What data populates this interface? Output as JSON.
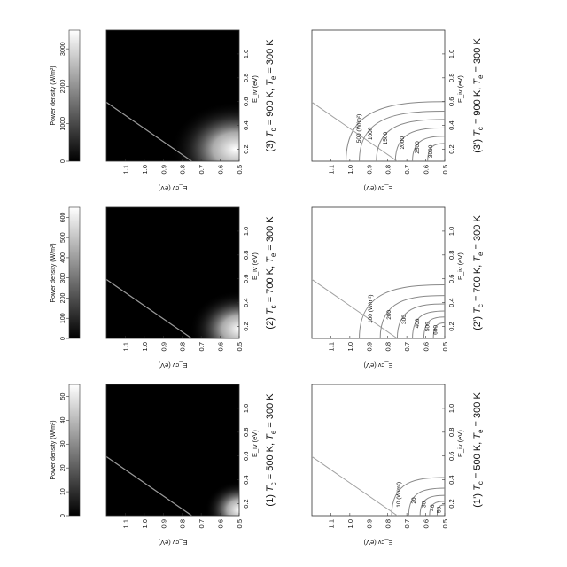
{
  "chart_data": [
    {
      "type": "heatmap",
      "caption_prefix": "(1)",
      "caption_tc": "500 K",
      "caption_te": "300 K",
      "xlabel": "E_iv (eV)",
      "ylabel": "E_cv (eV)",
      "xlim": [
        0.1,
        1.2
      ],
      "ylim": [
        0.5,
        1.2
      ],
      "xticks": [
        "0.2",
        "0.4",
        "0.6",
        "0.8",
        "1.0"
      ],
      "yticks": [
        "0.5",
        "0.6",
        "0.7",
        "0.8",
        "0.9",
        "1.0",
        "1.1"
      ],
      "colorbar_label": "Power density (W/m²)",
      "colorbar_ticks": [
        "0",
        "10",
        "20",
        "30",
        "40",
        "50"
      ],
      "colorbar_max": 55,
      "hotspot": {
        "x": 0.15,
        "y": 0.5
      },
      "spread": {
        "x": 0.12,
        "y": 0.09
      },
      "colormap": [
        "#000000",
        "#ffffff"
      ],
      "diagonal_line": {
        "from": [
          0.1,
          0.75
        ],
        "to": [
          1.2,
          1.75
        ]
      }
    },
    {
      "type": "heatmap",
      "caption_prefix": "(2)",
      "caption_tc": "700 K",
      "caption_te": "300 K",
      "xlabel": "E_iv (eV)",
      "ylabel": "E_cv (eV)",
      "xlim": [
        0.1,
        1.2
      ],
      "ylim": [
        0.5,
        1.2
      ],
      "xticks": [
        "0.2",
        "0.4",
        "0.6",
        "0.8",
        "1.0"
      ],
      "yticks": [
        "0.5",
        "0.6",
        "0.7",
        "0.8",
        "0.9",
        "1.0",
        "1.1"
      ],
      "colorbar_label": "Power density (W/m²)",
      "colorbar_ticks": [
        "0",
        "100",
        "200",
        "300",
        "400",
        "500",
        "600"
      ],
      "colorbar_max": 650,
      "hotspot": {
        "x": 0.18,
        "y": 0.5
      },
      "spread": {
        "x": 0.16,
        "y": 0.13
      },
      "colormap": [
        "#000000",
        "#ffffff"
      ],
      "diagonal_line": {
        "from": [
          0.1,
          0.75
        ],
        "to": [
          1.2,
          1.75
        ]
      }
    },
    {
      "type": "heatmap",
      "caption_prefix": "(3)",
      "caption_tc": "900 K",
      "caption_te": "300 K",
      "xlabel": "E_iv (eV)",
      "ylabel": "E_cv (eV)",
      "xlim": [
        0.1,
        1.2
      ],
      "ylim": [
        0.5,
        1.2
      ],
      "xticks": [
        "0.2",
        "0.4",
        "0.6",
        "0.8",
        "1.0"
      ],
      "yticks": [
        "0.5",
        "0.6",
        "0.7",
        "0.8",
        "0.9",
        "1.0",
        "1.1"
      ],
      "colorbar_label": "Power density (W/m²)",
      "colorbar_ticks": [
        "0",
        "1000",
        "2000",
        "3000"
      ],
      "colorbar_max": 3500,
      "hotspot": {
        "x": 0.2,
        "y": 0.52
      },
      "spread": {
        "x": 0.2,
        "y": 0.17
      },
      "colormap": [
        "#000000",
        "#ffffff"
      ],
      "diagonal_line": {
        "from": [
          0.1,
          0.75
        ],
        "to": [
          1.2,
          1.75
        ]
      }
    },
    {
      "type": "contour",
      "caption_prefix": "(1’)",
      "caption_tc": "500 K",
      "caption_te": "300 K",
      "xlabel": "E_iv (eV)",
      "ylabel": "E_cv (eV)",
      "xlim": [
        0.1,
        1.2
      ],
      "ylim": [
        0.5,
        1.2
      ],
      "xticks": [
        "0.2",
        "0.4",
        "0.6",
        "0.8",
        "1.0"
      ],
      "yticks": [
        "0.5",
        "0.6",
        "0.7",
        "0.8",
        "0.9",
        "1.0",
        "1.1"
      ],
      "contours": [
        {
          "level": "10 (W/m²)",
          "x_max": 0.42,
          "y_max": 0.78
        },
        {
          "level": "20",
          "x_max": 0.33,
          "y_max": 0.69
        },
        {
          "level": "30",
          "x_max": 0.27,
          "y_max": 0.63
        },
        {
          "level": "40",
          "x_max": 0.22,
          "y_max": 0.58
        },
        {
          "level": "50",
          "x_max": 0.19,
          "y_max": 0.54
        }
      ],
      "diagonal_line": {
        "from": [
          0.1,
          0.75
        ],
        "to": [
          1.2,
          1.75
        ]
      }
    },
    {
      "type": "contour",
      "caption_prefix": "(2’)",
      "caption_tc": "700 K",
      "caption_te": "300 K",
      "xlabel": "E_iv (eV)",
      "ylabel": "E_cv (eV)",
      "xlim": [
        0.1,
        1.2
      ],
      "ylim": [
        0.5,
        1.2
      ],
      "xticks": [
        "0.2",
        "0.4",
        "0.6",
        "0.8",
        "1.0"
      ],
      "yticks": [
        "0.5",
        "0.6",
        "0.7",
        "0.8",
        "0.9",
        "1.0",
        "1.1"
      ],
      "contours": [
        {
          "level": "100 (W/m²)",
          "x_max": 0.55,
          "y_max": 0.95
        },
        {
          "level": "200",
          "x_max": 0.46,
          "y_max": 0.84
        },
        {
          "level": "300",
          "x_max": 0.39,
          "y_max": 0.75
        },
        {
          "level": "400",
          "x_max": 0.33,
          "y_max": 0.67
        },
        {
          "level": "500",
          "x_max": 0.28,
          "y_max": 0.61
        },
        {
          "level": "600",
          "x_max": 0.23,
          "y_max": 0.56
        }
      ],
      "diagonal_line": {
        "from": [
          0.1,
          0.75
        ],
        "to": [
          1.2,
          1.75
        ]
      }
    },
    {
      "type": "contour",
      "caption_prefix": "(3’)",
      "caption_tc": "900 K",
      "caption_te": "300 K",
      "xlabel": "E_iv (eV)",
      "ylabel": "E_cv (eV)",
      "xlim": [
        0.1,
        1.2
      ],
      "ylim": [
        0.5,
        1.2
      ],
      "xticks": [
        "0.2",
        "0.4",
        "0.6",
        "0.8",
        "1.0"
      ],
      "yticks": [
        "0.5",
        "0.6",
        "0.7",
        "0.8",
        "0.9",
        "1.0",
        "1.1"
      ],
      "contours": [
        {
          "level": "500 (W/m²)",
          "x_max": 0.6,
          "y_max": 1.02
        },
        {
          "level": "1000",
          "x_max": 0.52,
          "y_max": 0.95
        },
        {
          "level": "1500",
          "x_max": 0.45,
          "y_max": 0.86
        },
        {
          "level": "2000",
          "x_max": 0.38,
          "y_max": 0.76
        },
        {
          "level": "2500",
          "x_max": 0.31,
          "y_max": 0.67
        },
        {
          "level": "3000",
          "x_max": 0.25,
          "y_max": 0.59
        }
      ],
      "diagonal_line": {
        "from": [
          0.1,
          0.75
        ],
        "to": [
          1.2,
          1.75
        ]
      }
    }
  ]
}
